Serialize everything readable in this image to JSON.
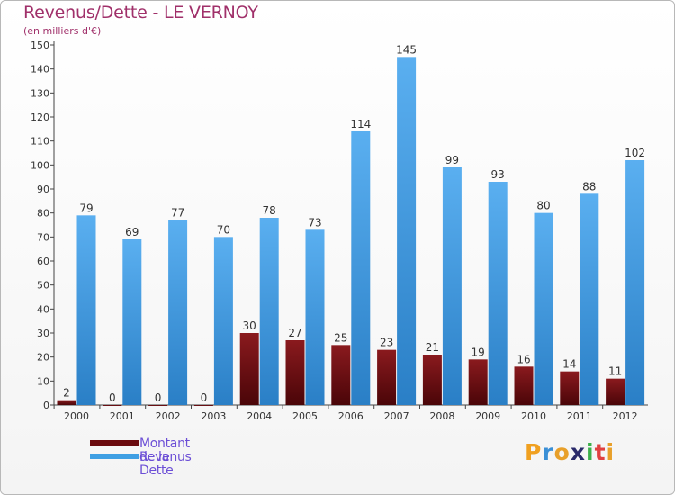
{
  "chart_data": {
    "type": "bar",
    "title": "Revenus/Dette - LE VERNOY",
    "subtitle": "(en milliers d'€)",
    "xlabel": "",
    "ylabel": "",
    "categories": [
      "2000",
      "2001",
      "2002",
      "2003",
      "2004",
      "2005",
      "2006",
      "2007",
      "2008",
      "2009",
      "2010",
      "2011",
      "2012"
    ],
    "series": [
      {
        "name": "Montant de la Dette",
        "color": "#7a0f14",
        "values": [
          2,
          0,
          0,
          0,
          30,
          27,
          25,
          23,
          21,
          19,
          16,
          14,
          11
        ]
      },
      {
        "name": "Revenus",
        "color": "#3f9fe3",
        "values": [
          79,
          69,
          77,
          70,
          78,
          73,
          114,
          145,
          99,
          93,
          80,
          88,
          102
        ]
      }
    ],
    "ylim": [
      0,
      150
    ],
    "yticks": [
      0,
      10,
      20,
      30,
      40,
      50,
      60,
      70,
      80,
      90,
      100,
      110,
      120,
      130,
      140,
      150
    ],
    "grid": false,
    "legend": "bottom-left"
  },
  "logo": {
    "letters": [
      "P",
      "r",
      "o",
      "x",
      "i",
      "t",
      "i"
    ],
    "colors": [
      "#f0a020",
      "#3a8fd6",
      "#e8a02a",
      "#2a2a6a",
      "#3cb04a",
      "#e04040",
      "#e8a02a"
    ]
  }
}
